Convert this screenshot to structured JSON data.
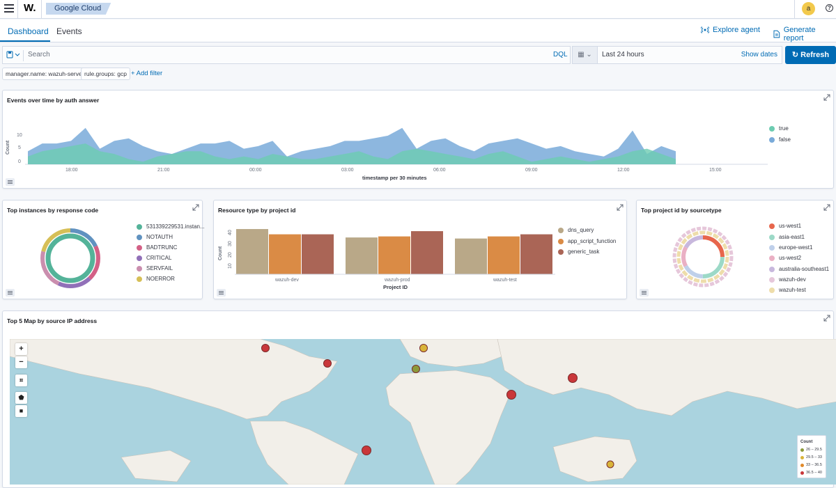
{
  "topbar": {
    "logo": "W.",
    "breadcrumb": "Google Cloud",
    "avatar_initial": "a"
  },
  "tabs": [
    {
      "label": "Dashboard",
      "active": true
    },
    {
      "label": "Events",
      "active": false
    }
  ],
  "header_actions": {
    "explore_agent": "Explore agent",
    "generate_report": "Generate report"
  },
  "search": {
    "placeholder": "Search",
    "language": "DQL",
    "time_range": "Last 24 hours",
    "show_dates": "Show dates",
    "refresh": "Refresh"
  },
  "filters": {
    "pills": [
      "manager.name: wazuh-server",
      "rule.groups: gcp"
    ],
    "add_filter": "+ Add filter"
  },
  "panels": {
    "events_over_time": {
      "title": "Events over time by auth answer",
      "y_axis_label": "Count",
      "x_axis_label": "timestamp per 30 minutes",
      "y_ticks": [
        "10",
        "5",
        "0"
      ],
      "x_ticks": [
        "18:00",
        "21:00",
        "00:00",
        "03:00",
        "06:00",
        "09:00",
        "12:00",
        "15:00"
      ],
      "legend": [
        {
          "label": "true",
          "color": "#6dccb1"
        },
        {
          "label": "false",
          "color": "#79aad9"
        }
      ]
    },
    "response_code": {
      "title": "Top instances by response code",
      "legend": [
        {
          "label": "531339229531.instan...",
          "color": "#54b399"
        },
        {
          "label": "NOTAUTH",
          "color": "#6092c0"
        },
        {
          "label": "BADTRUNC",
          "color": "#d36086"
        },
        {
          "label": "CRITICAL",
          "color": "#9170b8"
        },
        {
          "label": "SERVFAIL",
          "color": "#ca8eae"
        },
        {
          "label": "NOERROR",
          "color": "#d6bf57"
        }
      ]
    },
    "resource_type": {
      "title": "Resource type by project id",
      "y_axis_label": "Count",
      "x_axis_label": "Project ID",
      "y_ticks": [
        "40",
        "30",
        "20",
        "10",
        "0"
      ],
      "categories": [
        "wazuh-dev",
        "wazuh-prod",
        "wazuh-test"
      ],
      "legend": [
        {
          "label": "dns_query",
          "color": "#b9a888"
        },
        {
          "label": "app_script_function",
          "color": "#da8b45"
        },
        {
          "label": "generic_task",
          "color": "#aa6556"
        }
      ]
    },
    "project_sourcetype": {
      "title": "Top project id by sourcetype",
      "legend": [
        {
          "label": "us-west1",
          "color": "#e7664c"
        },
        {
          "label": "asia-east1",
          "color": "#9cd9c7"
        },
        {
          "label": "europe-west1",
          "color": "#bfd0ea"
        },
        {
          "label": "us-west2",
          "color": "#eab0c4"
        },
        {
          "label": "australia-southeast1",
          "color": "#c8b8dd"
        },
        {
          "label": "wazuh-dev",
          "color": "#e6c7da"
        },
        {
          "label": "wazuh-test",
          "color": "#eeddaa"
        }
      ]
    },
    "map": {
      "title": "Top 5 Map by source IP address",
      "legend_title": "Count",
      "legend": [
        {
          "label": "26 – 29.5",
          "color": "#8c9a3a"
        },
        {
          "label": "29.5 – 33",
          "color": "#d9b43a"
        },
        {
          "label": "33 – 36.5",
          "color": "#e08a2b"
        },
        {
          "label": "36.5 – 40",
          "color": "#c9373a"
        }
      ]
    }
  },
  "chart_data": [
    {
      "type": "area",
      "title": "Events over time by auth answer",
      "xlabel": "timestamp per 30 minutes",
      "ylabel": "Count",
      "x_ticks": [
        "18:00",
        "21:00",
        "00:00",
        "03:00",
        "06:00",
        "09:00",
        "12:00",
        "15:00"
      ],
      "ylim": [
        0,
        15
      ],
      "series": [
        {
          "name": "true",
          "values": [
            3,
            5,
            6,
            7,
            8,
            5,
            4,
            2,
            1,
            3,
            4,
            5,
            5,
            3,
            2,
            3,
            2,
            4,
            3,
            2,
            2,
            3,
            4,
            5,
            3,
            2,
            5,
            6,
            5,
            4,
            3,
            2,
            4,
            5,
            3,
            1,
            2,
            3,
            2,
            1,
            2,
            3,
            5,
            6,
            4,
            2
          ]
        },
        {
          "name": "false",
          "values": [
            5,
            8,
            8,
            9,
            14,
            6,
            9,
            10,
            7,
            5,
            4,
            6,
            8,
            8,
            9,
            6,
            7,
            9,
            3,
            5,
            6,
            7,
            9,
            9,
            10,
            11,
            14,
            6,
            9,
            10,
            7,
            5,
            8,
            9,
            10,
            8,
            6,
            7,
            5,
            4,
            3,
            6,
            13,
            4,
            7,
            5
          ]
        }
      ]
    },
    {
      "type": "bar",
      "title": "Resource type by project id",
      "xlabel": "Project ID",
      "ylabel": "Count",
      "categories": [
        "wazuh-dev",
        "wazuh-prod",
        "wazuh-test"
      ],
      "ylim": [
        0,
        45
      ],
      "series": [
        {
          "name": "dns_query",
          "values": [
            43,
            35,
            34
          ]
        },
        {
          "name": "app_script_function",
          "values": [
            38,
            36,
            36
          ]
        },
        {
          "name": "generic_task",
          "values": [
            38,
            41,
            38
          ]
        }
      ]
    }
  ]
}
